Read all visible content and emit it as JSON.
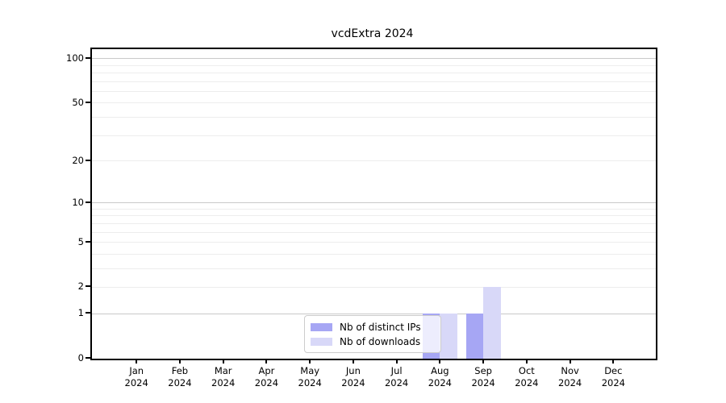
{
  "figure": {
    "title": "vcdExtra 2024"
  },
  "chart_data": {
    "type": "bar",
    "title": "vcdExtra 2024",
    "categories": [
      "Jan",
      "Feb",
      "Mar",
      "Apr",
      "May",
      "Jun",
      "Jul",
      "Aug",
      "Sep",
      "Oct",
      "Nov",
      "Dec"
    ],
    "category_year": "2024",
    "series": [
      {
        "name": "Nb of distinct IPs",
        "color": "#a6a6f4",
        "values": [
          0,
          0,
          0,
          0,
          0,
          0,
          0,
          1,
          1,
          0,
          0,
          0
        ]
      },
      {
        "name": "Nb of downloads",
        "color": "#d8d8f8",
        "values": [
          0,
          0,
          0,
          0,
          0,
          0,
          0,
          1,
          2,
          0,
          0,
          0
        ]
      }
    ],
    "xlabel": "",
    "ylabel": "",
    "y_ticks": [
      0,
      1,
      2,
      5,
      10,
      20,
      50,
      100
    ],
    "y_scale": "log1p",
    "ylim": [
      0,
      116
    ],
    "grid": {
      "major_lines": [
        1,
        10,
        100
      ],
      "minor_lines": [
        2,
        3,
        4,
        5,
        6,
        7,
        8,
        9,
        20,
        30,
        40,
        50,
        60,
        70,
        80,
        90
      ]
    },
    "legend": {
      "position": "bottom-center"
    }
  }
}
